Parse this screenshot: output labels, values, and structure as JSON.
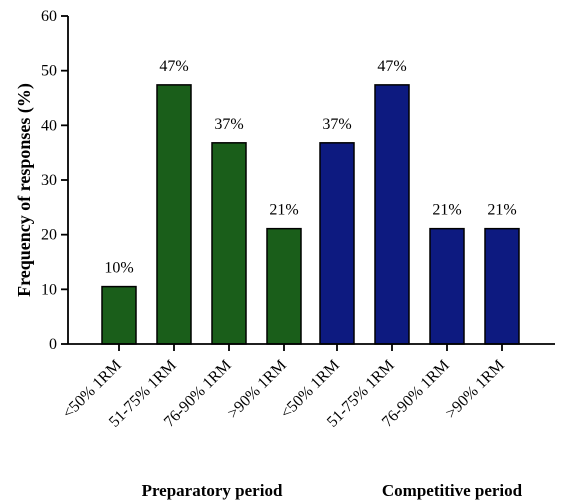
{
  "chart_data": {
    "type": "bar",
    "title": "",
    "ylabel": "Frequency of responses (%)",
    "ylim": [
      0,
      60
    ],
    "yticks": [
      0,
      10,
      20,
      30,
      40,
      50,
      60
    ],
    "grid": false,
    "groups": [
      {
        "name": "Preparatory period",
        "color": "#1a5e1a",
        "categories": [
          "<50% 1RM",
          "51-75% 1RM",
          "76-90% 1RM",
          ">90% 1RM"
        ],
        "values": [
          10.5,
          47.4,
          36.8,
          21.1
        ],
        "labels": [
          "10%",
          "47%",
          "37%",
          "21%"
        ]
      },
      {
        "name": "Competitive period",
        "color": "#0d1a80",
        "categories": [
          "<50% 1RM",
          "51-75% 1RM",
          "76-90% 1RM",
          ">90% 1RM"
        ],
        "values": [
          36.8,
          47.4,
          21.1,
          21.1
        ],
        "labels": [
          "37%",
          "47%",
          "21%",
          "21%"
        ]
      }
    ]
  }
}
